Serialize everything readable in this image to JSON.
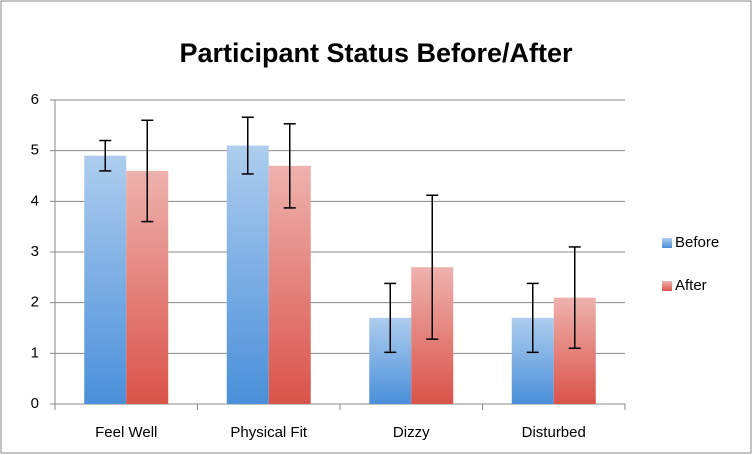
{
  "chart_data": {
    "type": "bar",
    "title": "Participant Status Before/After",
    "categories": [
      "Feel Well",
      "Physical Fit",
      "Dizzy",
      "Disturbed"
    ],
    "series": [
      {
        "name": "Before",
        "color": "#4a8fd9",
        "values": [
          4.9,
          5.1,
          1.7,
          1.7
        ],
        "errors": [
          0.3,
          0.56,
          0.68,
          0.68
        ]
      },
      {
        "name": "After",
        "color": "#d9534a",
        "values": [
          4.6,
          4.7,
          2.7,
          2.1
        ],
        "errors": [
          1.0,
          0.83,
          1.42,
          1.0
        ]
      }
    ],
    "ylim": [
      0,
      6
    ],
    "yticks": [
      0,
      1,
      2,
      3,
      4,
      5,
      6
    ],
    "grid": true,
    "legend": "right"
  }
}
